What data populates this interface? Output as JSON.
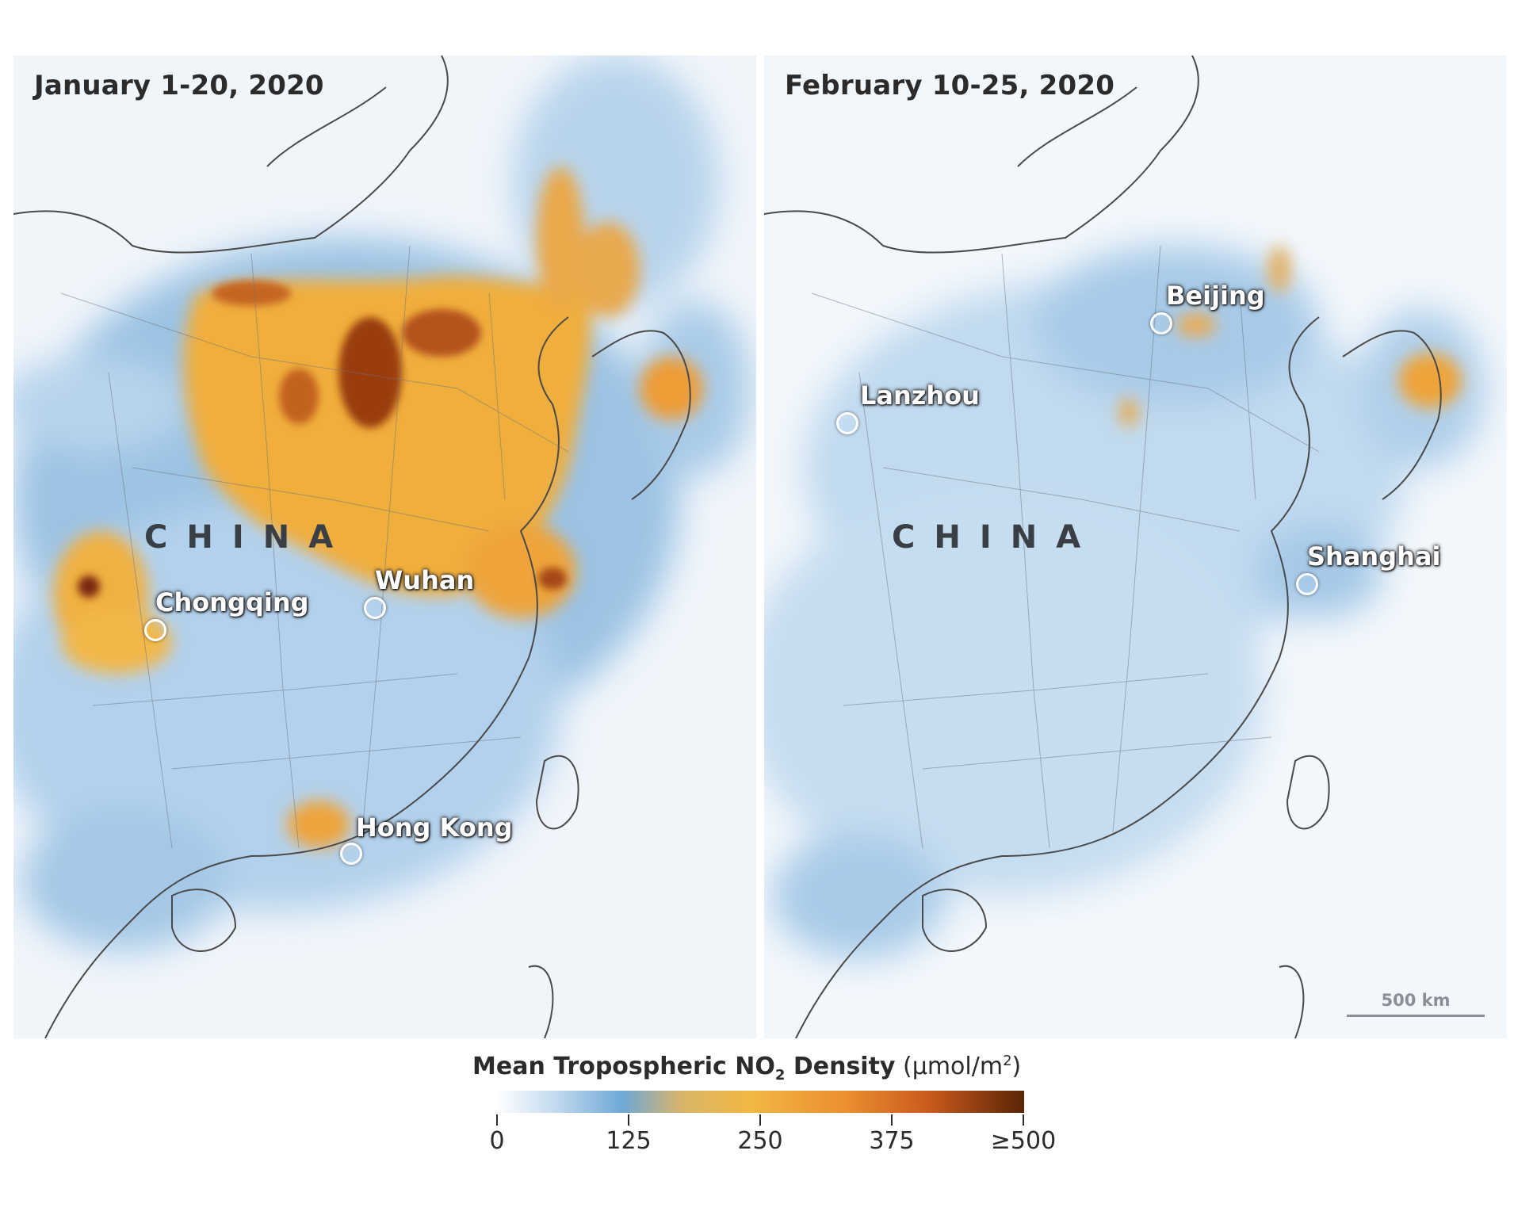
{
  "left_panel": {
    "date": "January 1-20, 2020",
    "country": "CHINA",
    "cities": [
      {
        "name": "Wuhan",
        "marker": "location-circle-icon"
      },
      {
        "name": "Chongqing",
        "marker": "location-circle-icon"
      },
      {
        "name": "Hong Kong",
        "marker": "location-circle-icon"
      }
    ]
  },
  "right_panel": {
    "date": "February 10-25, 2020",
    "country": "CHINA",
    "cities": [
      {
        "name": "Beijing",
        "marker": "location-circle-icon"
      },
      {
        "name": "Lanzhou",
        "marker": "location-circle-icon"
      },
      {
        "name": "Shanghai",
        "marker": "location-circle-icon"
      }
    ],
    "scale_bar": "500 km"
  },
  "legend": {
    "title_main": "Mean Tropospheric NO",
    "title_sub": "2",
    "title_rest": " Density",
    "units_prefix": "(µmol/m",
    "units_sup": "2",
    "units_suffix": ")",
    "ticks": [
      "0",
      "125",
      "250",
      "375",
      "≥500"
    ],
    "colors": [
      "#ffffff",
      "#6fa8d6",
      "#f2b744",
      "#ec8f30",
      "#5a2406"
    ]
  }
}
